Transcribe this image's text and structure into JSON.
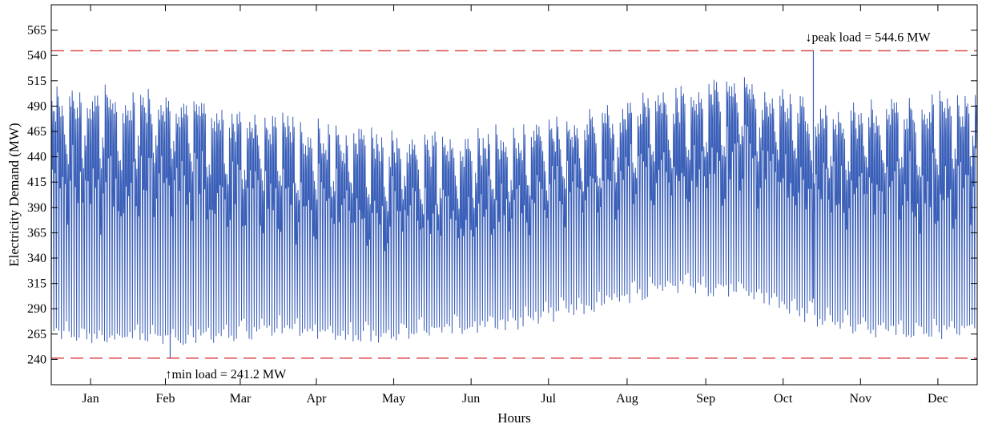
{
  "chart_data": {
    "type": "line",
    "title": "",
    "xlabel": "Hours",
    "ylabel": "Electricity Demand (MW)",
    "xlim": [
      0,
      8760
    ],
    "ylim": [
      215,
      590
    ],
    "yticks": [
      240,
      265,
      290,
      315,
      340,
      365,
      390,
      415,
      440,
      465,
      490,
      515,
      540,
      565
    ],
    "months": [
      "Jan",
      "Feb",
      "Mar",
      "Apr",
      "May",
      "Jun",
      "Jul",
      "Aug",
      "Sep",
      "Oct",
      "Nov",
      "Dec"
    ],
    "month_positions": [
      372,
      1080,
      1788,
      2508,
      3240,
      3972,
      4704,
      5448,
      6192,
      6924,
      7656,
      8388
    ],
    "grid": false,
    "series": [
      {
        "name": "",
        "color": "#3A5FB8",
        "x": [
          0,
          730,
          1460,
          2190,
          2920,
          3650,
          4380,
          5110,
          5840,
          6570,
          7300,
          8030,
          8760
        ],
        "daily_max": [
          515,
          510,
          500,
          485,
          470,
          465,
          475,
          490,
          510,
          520,
          495,
          500,
          510
        ],
        "daily_min": [
          258,
          252,
          255,
          262,
          255,
          260,
          268,
          285,
          305,
          300,
          270,
          258,
          260
        ]
      },
      {
        "name": "",
        "color": "#D62728",
        "style": "dashed",
        "x": [
          0,
          8760
        ],
        "values": [
          544.6,
          544.6
        ]
      },
      {
        "name": "",
        "color": "#D62728",
        "style": "dashed",
        "x": [
          0,
          8760
        ],
        "values": [
          241.2,
          241.2
        ]
      }
    ],
    "peak_load": {
      "label": "↓peak load = 544.6 MW",
      "x": 7210,
      "value": 544.6
    },
    "min_load": {
      "label": "↑min load = 241.2 MW",
      "x": 1125,
      "value": 241.2
    }
  }
}
